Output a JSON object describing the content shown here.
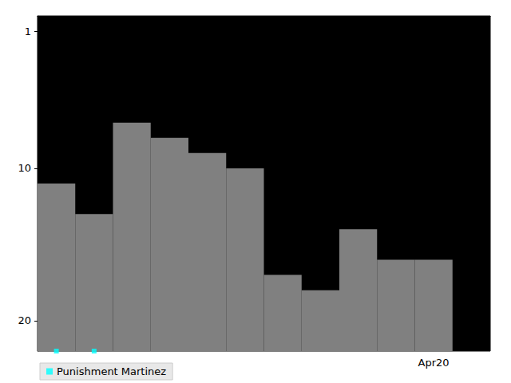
{
  "chart_data": {
    "type": "rank_steps",
    "categories": [
      null,
      null,
      null,
      null,
      null,
      null,
      null,
      null,
      null,
      null,
      "Apr20",
      null
    ],
    "series": [
      {
        "type": "bar",
        "color": "#808080",
        "values": [
          11,
          13,
          7,
          8,
          9,
          10,
          17,
          18,
          14,
          16,
          16,
          null
        ]
      },
      {
        "name": "Punishment Martinez",
        "type": "scatter",
        "marker": "square",
        "color": "#00ffff",
        "values": [
          22,
          22,
          null,
          null,
          null,
          null,
          null,
          null,
          null,
          null,
          null,
          null
        ]
      }
    ],
    "ylim": [
      22,
      0
    ],
    "yticks": [
      1,
      10,
      20
    ],
    "legend": "lower left",
    "grid": false
  }
}
